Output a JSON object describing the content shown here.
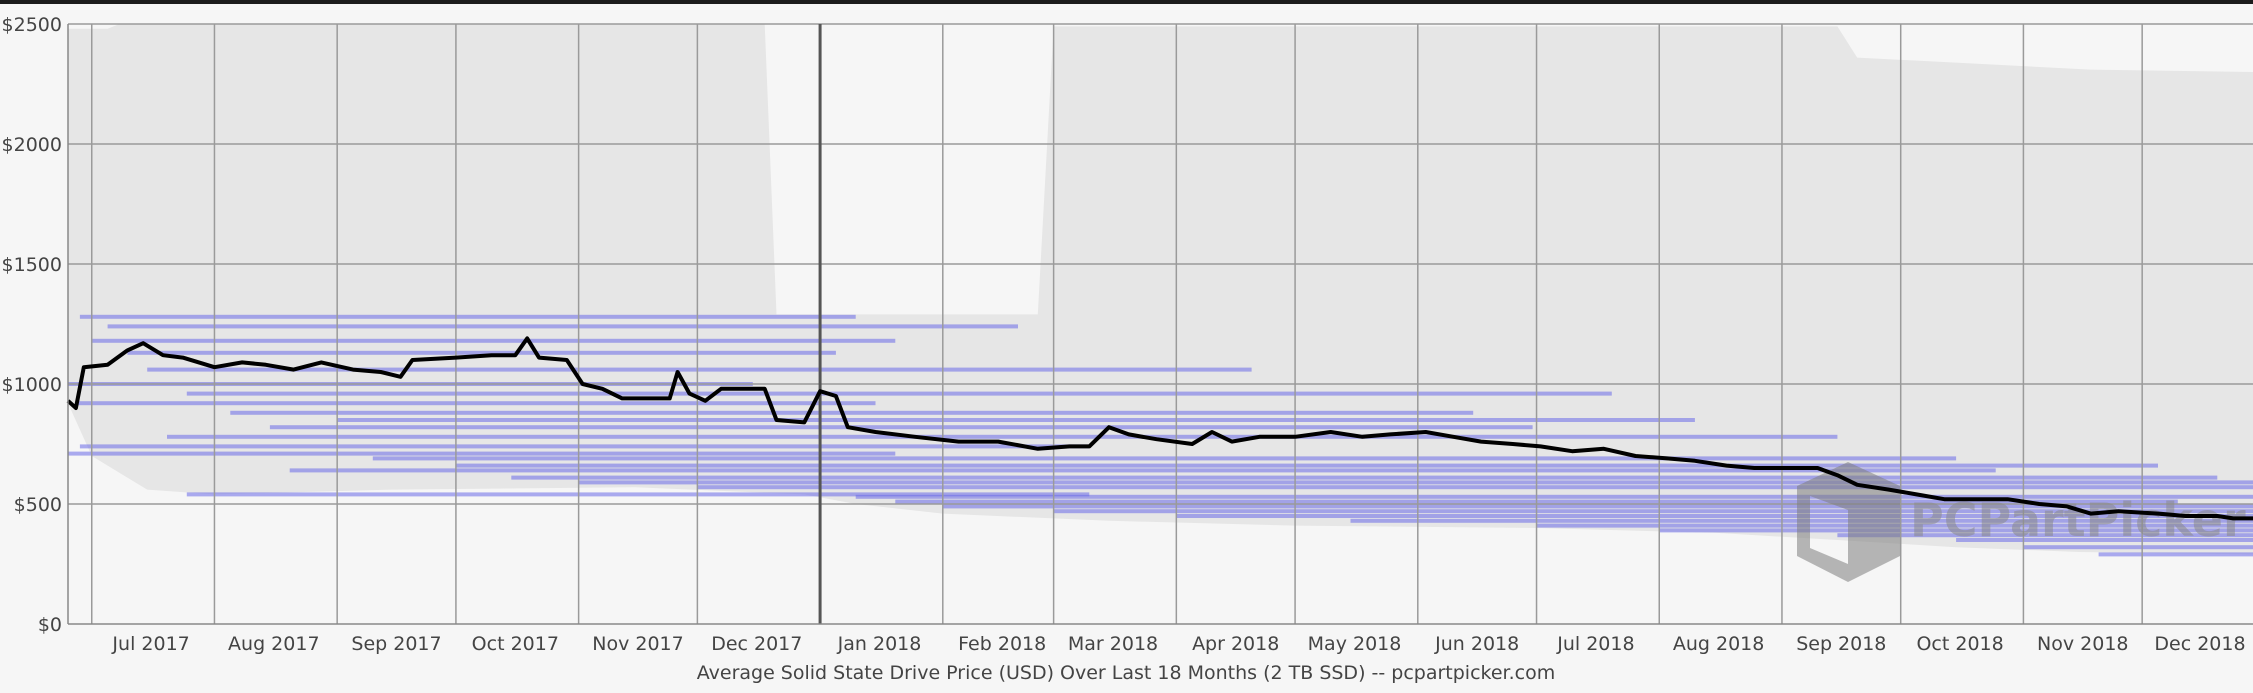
{
  "chart_data": {
    "type": "line",
    "title": "Average Solid State Drive Price (USD) Over Last 18 Months (2 TB SSD) -- pcpartpicker.com",
    "xlabel": "",
    "ylabel": "",
    "ylim": [
      0,
      2500
    ],
    "y_ticks": [
      "$0",
      "$500",
      "$1000",
      "$1500",
      "$2000",
      "$2500"
    ],
    "y_tick_values": [
      0,
      500,
      1000,
      1500,
      2000,
      2500
    ],
    "x_ticks": [
      "Jul 2017",
      "Aug 2017",
      "Sep 2017",
      "Oct 2017",
      "Nov 2017",
      "Dec 2017",
      "Jan 2018",
      "Feb 2018",
      "Mar 2018",
      "Apr 2018",
      "May 2018",
      "Jun 2018",
      "Jul 2018",
      "Aug 2018",
      "Sep 2018",
      "Oct 2018",
      "Nov 2018",
      "Dec 2018"
    ],
    "xlim": [
      "2017-06-25",
      "2018-12-29"
    ],
    "grid": true,
    "watermark": "PCPartPicker",
    "colors": {
      "average_line": "#000000",
      "price_band": "#6a6ae8",
      "range_fill": "#e6e6e6"
    },
    "series": [
      {
        "values": [
          [
            "2017-06-25",
            930
          ],
          [
            "2017-06-27",
            900
          ],
          [
            "2017-06-29",
            1070
          ],
          [
            "2017-07-05",
            1080
          ],
          [
            "2017-07-10",
            1140
          ],
          [
            "2017-07-14",
            1170
          ],
          [
            "2017-07-19",
            1120
          ],
          [
            "2017-07-24",
            1110
          ],
          [
            "2017-08-01",
            1070
          ],
          [
            "2017-08-08",
            1090
          ],
          [
            "2017-08-14",
            1080
          ],
          [
            "2017-08-21",
            1060
          ],
          [
            "2017-08-28",
            1090
          ],
          [
            "2017-09-05",
            1060
          ],
          [
            "2017-09-12",
            1050
          ],
          [
            "2017-09-17",
            1030
          ],
          [
            "2017-09-20",
            1100
          ],
          [
            "2017-10-01",
            1110
          ],
          [
            "2017-10-10",
            1120
          ],
          [
            "2017-10-16",
            1120
          ],
          [
            "2017-10-19",
            1190
          ],
          [
            "2017-10-22",
            1110
          ],
          [
            "2017-10-29",
            1100
          ],
          [
            "2017-11-02",
            1000
          ],
          [
            "2017-11-07",
            980
          ],
          [
            "2017-11-12",
            940
          ],
          [
            "2017-11-20",
            940
          ],
          [
            "2017-11-24",
            940
          ],
          [
            "2017-11-26",
            1050
          ],
          [
            "2017-11-29",
            960
          ],
          [
            "2017-12-03",
            930
          ],
          [
            "2017-12-07",
            980
          ],
          [
            "2017-12-18",
            980
          ],
          [
            "2017-12-21",
            850
          ],
          [
            "2017-12-28",
            840
          ],
          [
            "2018-01-01",
            970
          ],
          [
            "2018-01-05",
            950
          ],
          [
            "2018-01-08",
            820
          ],
          [
            "2018-01-15",
            800
          ],
          [
            "2018-01-25",
            780
          ],
          [
            "2018-02-05",
            760
          ],
          [
            "2018-02-15",
            760
          ],
          [
            "2018-02-25",
            730
          ],
          [
            "2018-03-05",
            740
          ],
          [
            "2018-03-10",
            740
          ],
          [
            "2018-03-15",
            820
          ],
          [
            "2018-03-20",
            790
          ],
          [
            "2018-03-27",
            770
          ],
          [
            "2018-04-05",
            750
          ],
          [
            "2018-04-10",
            800
          ],
          [
            "2018-04-15",
            760
          ],
          [
            "2018-04-22",
            780
          ],
          [
            "2018-05-01",
            780
          ],
          [
            "2018-05-10",
            800
          ],
          [
            "2018-05-18",
            780
          ],
          [
            "2018-05-25",
            790
          ],
          [
            "2018-06-03",
            800
          ],
          [
            "2018-06-10",
            780
          ],
          [
            "2018-06-17",
            760
          ],
          [
            "2018-06-25",
            750
          ],
          [
            "2018-07-02",
            740
          ],
          [
            "2018-07-10",
            720
          ],
          [
            "2018-07-18",
            730
          ],
          [
            "2018-07-26",
            700
          ],
          [
            "2018-08-03",
            690
          ],
          [
            "2018-08-10",
            680
          ],
          [
            "2018-08-18",
            660
          ],
          [
            "2018-08-25",
            650
          ],
          [
            "2018-09-01",
            650
          ],
          [
            "2018-09-10",
            650
          ],
          [
            "2018-09-15",
            620
          ],
          [
            "2018-09-20",
            580
          ],
          [
            "2018-09-28",
            560
          ],
          [
            "2018-10-05",
            540
          ],
          [
            "2018-10-12",
            520
          ],
          [
            "2018-10-20",
            520
          ],
          [
            "2018-10-28",
            520
          ],
          [
            "2018-11-05",
            500
          ],
          [
            "2018-11-12",
            490
          ],
          [
            "2018-11-18",
            460
          ],
          [
            "2018-11-25",
            470
          ],
          [
            "2018-12-05",
            460
          ],
          [
            "2018-12-12",
            450
          ],
          [
            "2018-12-20",
            450
          ],
          [
            "2018-12-24",
            440
          ],
          [
            "2018-12-29",
            440
          ]
        ]
      }
    ],
    "range_envelope": {
      "upper": [
        [
          "2017-06-25",
          2480
        ],
        [
          "2017-07-05",
          2480
        ],
        [
          "2017-07-08",
          2500
        ],
        [
          "2017-12-18",
          2500
        ],
        [
          "2017-12-21",
          1290
        ],
        [
          "2018-02-25",
          1290
        ],
        [
          "2018-03-01",
          2490
        ],
        [
          "2018-09-15",
          2490
        ],
        [
          "2018-09-20",
          2360
        ],
        [
          "2018-11-18",
          2310
        ],
        [
          "2018-12-29",
          2300
        ]
      ],
      "lower": [
        [
          "2017-06-25",
          920
        ],
        [
          "2017-07-01",
          700
        ],
        [
          "2017-07-15",
          560
        ],
        [
          "2017-08-01",
          540
        ],
        [
          "2017-09-15",
          560
        ],
        [
          "2017-11-15",
          570
        ],
        [
          "2017-12-28",
          540
        ],
        [
          "2018-01-10",
          500
        ],
        [
          "2018-02-01",
          460
        ],
        [
          "2018-03-15",
          430
        ],
        [
          "2018-05-01",
          410
        ],
        [
          "2018-07-01",
          400
        ],
        [
          "2018-08-15",
          380
        ],
        [
          "2018-09-15",
          350
        ],
        [
          "2018-10-15",
          320
        ],
        [
          "2018-11-15",
          300
        ],
        [
          "2018-12-29",
          290
        ]
      ]
    },
    "price_bands": [
      {
        "start": "2017-06-28",
        "end": "2018-01-10",
        "value": 1280
      },
      {
        "start": "2017-07-05",
        "end": "2018-02-20",
        "value": 1240
      },
      {
        "start": "2017-07-01",
        "end": "2018-01-20",
        "value": 1180
      },
      {
        "start": "2017-07-10",
        "end": "2018-01-05",
        "value": 1130
      },
      {
        "start": "2017-07-15",
        "end": "2018-04-20",
        "value": 1060
      },
      {
        "start": "2017-06-25",
        "end": "2017-12-15",
        "value": 1000
      },
      {
        "start": "2017-07-25",
        "end": "2018-07-20",
        "value": 960
      },
      {
        "start": "2017-06-27",
        "end": "2018-01-15",
        "value": 920
      },
      {
        "start": "2017-08-05",
        "end": "2018-06-15",
        "value": 880
      },
      {
        "start": "2017-09-01",
        "end": "2018-08-10",
        "value": 850
      },
      {
        "start": "2017-08-15",
        "end": "2018-06-30",
        "value": 820
      },
      {
        "start": "2017-07-20",
        "end": "2018-09-15",
        "value": 780
      },
      {
        "start": "2017-06-28",
        "end": "2018-03-10",
        "value": 740
      },
      {
        "start": "2017-06-25",
        "end": "2018-01-20",
        "value": 710
      },
      {
        "start": "2017-09-10",
        "end": "2018-10-15",
        "value": 690
      },
      {
        "start": "2017-10-01",
        "end": "2018-12-05",
        "value": 660
      },
      {
        "start": "2017-08-20",
        "end": "2018-10-25",
        "value": 640
      },
      {
        "start": "2017-10-15",
        "end": "2018-12-20",
        "value": 610
      },
      {
        "start": "2017-11-01",
        "end": "2018-12-29",
        "value": 590
      },
      {
        "start": "2017-12-01",
        "end": "2018-12-29",
        "value": 570
      },
      {
        "start": "2017-07-25",
        "end": "2018-03-10",
        "value": 540
      },
      {
        "start": "2018-01-10",
        "end": "2018-12-29",
        "value": 530
      },
      {
        "start": "2018-01-20",
        "end": "2018-12-10",
        "value": 510
      },
      {
        "start": "2018-02-01",
        "end": "2018-12-29",
        "value": 490
      },
      {
        "start": "2018-03-01",
        "end": "2018-12-29",
        "value": 470
      },
      {
        "start": "2018-04-01",
        "end": "2018-12-29",
        "value": 450
      },
      {
        "start": "2018-05-15",
        "end": "2018-12-29",
        "value": 430
      },
      {
        "start": "2018-07-01",
        "end": "2018-12-29",
        "value": 410
      },
      {
        "start": "2018-08-01",
        "end": "2018-12-29",
        "value": 390
      },
      {
        "start": "2018-09-15",
        "end": "2018-12-29",
        "value": 370
      },
      {
        "start": "2018-10-15",
        "end": "2018-12-29",
        "value": 350
      },
      {
        "start": "2018-11-01",
        "end": "2018-12-29",
        "value": 320
      },
      {
        "start": "2018-11-20",
        "end": "2018-12-29",
        "value": 290
      }
    ]
  }
}
